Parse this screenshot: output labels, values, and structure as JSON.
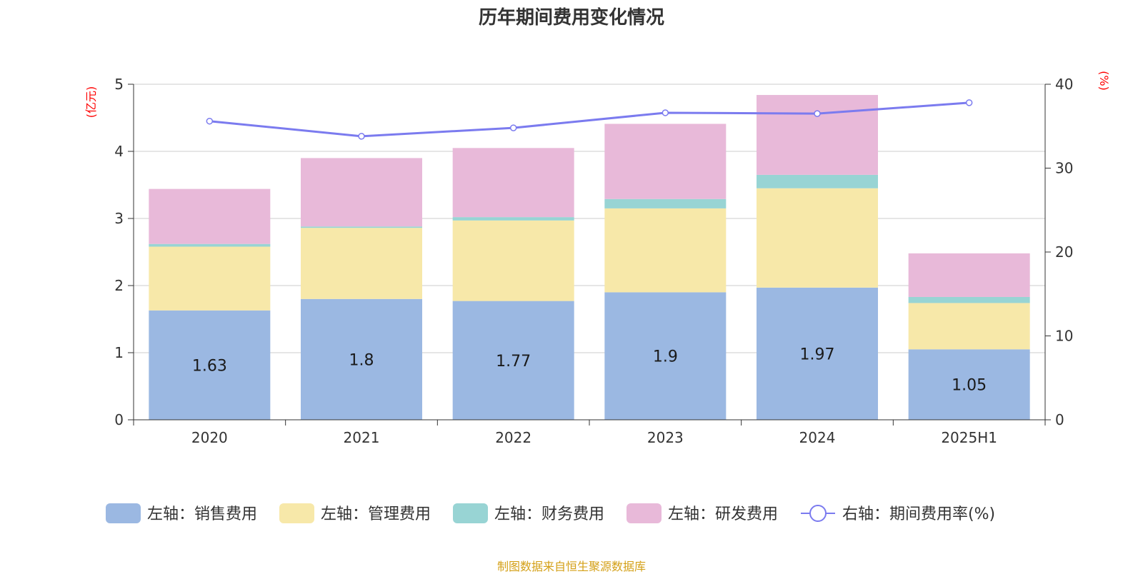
{
  "title": "历年期间费用变化情况",
  "footer": "制图数据来自恒生聚源数据库",
  "colors": {
    "sales": "#9bb8e2",
    "admin": "#f7e8a9",
    "finance": "#98d4d4",
    "rd": "#e8b9d9",
    "rate": "#7b7bef",
    "grid": "#cccccc",
    "axis": "#333333",
    "unit": "#ff0000",
    "footer": "#d4a017"
  },
  "chart_data": {
    "type": "bar",
    "stacked": true,
    "categories": [
      "2020",
      "2021",
      "2022",
      "2023",
      "2024",
      "2025H1"
    ],
    "y_left": {
      "unit": "(亿元)",
      "ylim": [
        0,
        5
      ],
      "ticks": [
        0,
        1,
        2,
        3,
        4,
        5
      ]
    },
    "y_right": {
      "unit": "(%)",
      "ylim": [
        0,
        40
      ],
      "ticks": [
        0,
        10,
        20,
        30,
        40
      ]
    },
    "grid": true,
    "legend_position": "bottom",
    "series": [
      {
        "key": "sales",
        "name": "左轴：销售费用",
        "axis": "left",
        "type": "bar",
        "values": [
          1.63,
          1.8,
          1.77,
          1.9,
          1.97,
          1.05
        ],
        "show_labels": true
      },
      {
        "key": "admin",
        "name": "左轴：管理费用",
        "axis": "left",
        "type": "bar",
        "values": [
          0.95,
          1.06,
          1.2,
          1.25,
          1.48,
          0.69
        ]
      },
      {
        "key": "finance",
        "name": "左轴：财务费用",
        "axis": "left",
        "type": "bar",
        "values": [
          0.04,
          0.02,
          0.05,
          0.14,
          0.2,
          0.09
        ]
      },
      {
        "key": "rd",
        "name": "左轴：研发费用",
        "axis": "left",
        "type": "bar",
        "values": [
          0.82,
          1.02,
          1.03,
          1.12,
          1.19,
          0.65
        ]
      },
      {
        "key": "rate",
        "name": "右轴：期间费用率(%)",
        "axis": "right",
        "type": "line",
        "values": [
          35.6,
          33.8,
          34.8,
          36.6,
          36.5,
          37.8
        ]
      }
    ]
  }
}
